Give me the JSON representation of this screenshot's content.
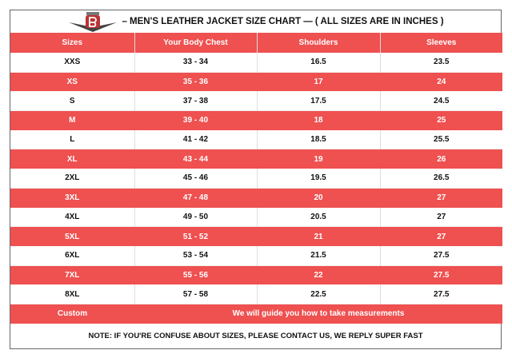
{
  "title": "– MEN'S LEATHER JACKET SIZE CHART — ( ALL SIZES ARE IN INCHES )",
  "logo_text": "B",
  "colors": {
    "accent": "#ef5050",
    "text": "#111111"
  },
  "headers": [
    "Sizes",
    "Your Body Chest",
    "Shoulders",
    "Sleeves"
  ],
  "rows": [
    [
      "XXS",
      "33 - 34",
      "16.5",
      "23.5"
    ],
    [
      "XS",
      "35 - 36",
      "17",
      "24"
    ],
    [
      "S",
      "37 - 38",
      "17.5",
      "24.5"
    ],
    [
      "M",
      "39 - 40",
      "18",
      "25"
    ],
    [
      "L",
      "41 - 42",
      "18.5",
      "25.5"
    ],
    [
      "XL",
      "43 - 44",
      "19",
      "26"
    ],
    [
      "2XL",
      "45 - 46",
      "19.5",
      "26.5"
    ],
    [
      "3XL",
      "47 - 48",
      "20",
      "27"
    ],
    [
      "4XL",
      "49 - 50",
      "20.5",
      "27"
    ],
    [
      "5XL",
      "51 - 52",
      "21",
      "27"
    ],
    [
      "6XL",
      "53 - 54",
      "21.5",
      "27.5"
    ],
    [
      "7XL",
      "55 - 56",
      "22",
      "27.5"
    ],
    [
      "8XL",
      "57 - 58",
      "22.5",
      "27.5"
    ]
  ],
  "custom": {
    "label": "Custom",
    "text": "We will guide you how to take measurements"
  },
  "note": "NOTE: IF YOU'RE CONFUSE ABOUT SIZES, PLEASE CONTACT US, WE REPLY SUPER FAST"
}
